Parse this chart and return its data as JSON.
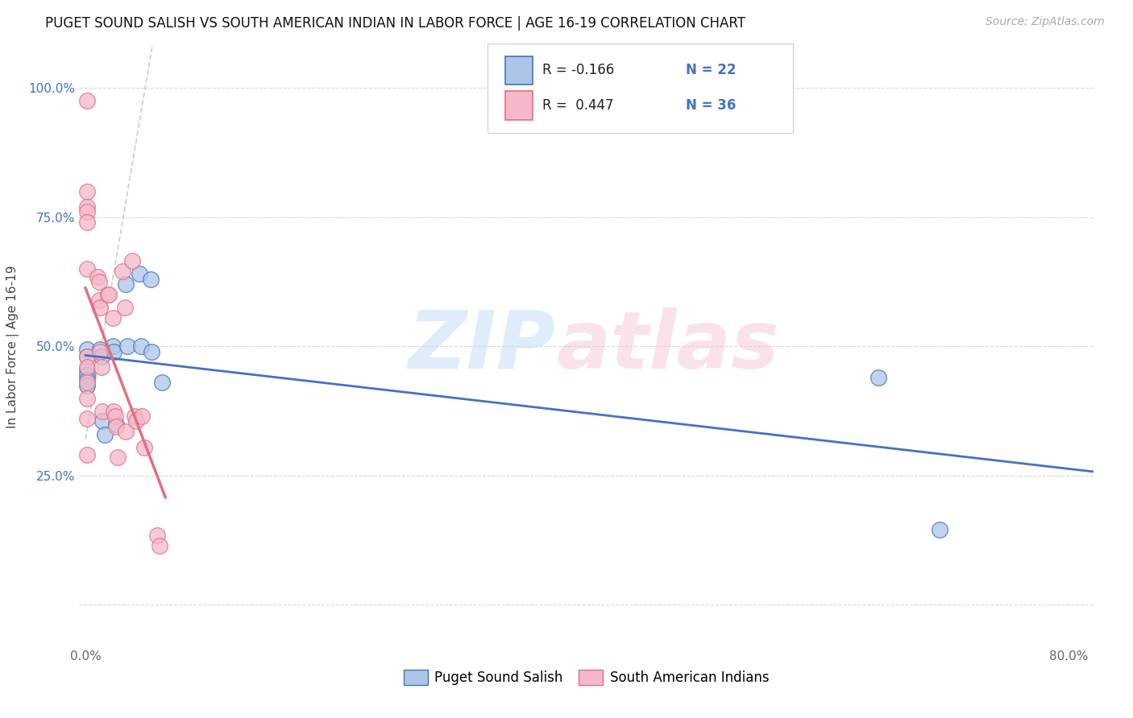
{
  "title": "PUGET SOUND SALISH VS SOUTH AMERICAN INDIAN IN LABOR FORCE | AGE 16-19 CORRELATION CHART",
  "source": "Source: ZipAtlas.com",
  "ylabel": "In Labor Force | Age 16-19",
  "xlim": [
    -0.005,
    0.82
  ],
  "ylim": [
    -0.08,
    1.08
  ],
  "xticks": [
    0.0,
    0.1,
    0.2,
    0.3,
    0.4,
    0.5,
    0.6,
    0.7,
    0.8
  ],
  "xticklabels": [
    "0.0%",
    "",
    "",
    "",
    "",
    "",
    "",
    "",
    "80.0%"
  ],
  "yticks": [
    0.0,
    0.25,
    0.5,
    0.75,
    1.0
  ],
  "yticklabels": [
    "",
    "25.0%",
    "50.0%",
    "75.0%",
    "100.0%"
  ],
  "color_blue": "#adc6e8",
  "color_pink": "#f5b8ca",
  "color_trendline_blue": "#4472c4",
  "color_trendline_pink": "#e07080",
  "color_refline": "#c8c8c8",
  "grid_color": "#d8d8d8",
  "puget_x": [
    0.001,
    0.001,
    0.001,
    0.001,
    0.001,
    0.001,
    0.012,
    0.013,
    0.014,
    0.016,
    0.022,
    0.023,
    0.025,
    0.033,
    0.034,
    0.044,
    0.045,
    0.053,
    0.054,
    0.062,
    0.645,
    0.695
  ],
  "puget_y": [
    0.495,
    0.48,
    0.455,
    0.445,
    0.435,
    0.425,
    0.495,
    0.48,
    0.355,
    0.33,
    0.5,
    0.49,
    0.35,
    0.62,
    0.5,
    0.64,
    0.5,
    0.63,
    0.49,
    0.43,
    0.44,
    0.145
  ],
  "samind_x": [
    0.001,
    0.001,
    0.001,
    0.001,
    0.001,
    0.001,
    0.001,
    0.001,
    0.001,
    0.001,
    0.001,
    0.001,
    0.01,
    0.011,
    0.011,
    0.012,
    0.012,
    0.013,
    0.014,
    0.018,
    0.019,
    0.022,
    0.023,
    0.024,
    0.025,
    0.026,
    0.03,
    0.032,
    0.033,
    0.038,
    0.04,
    0.041,
    0.046,
    0.048,
    0.058,
    0.06
  ],
  "samind_y": [
    0.975,
    0.8,
    0.77,
    0.76,
    0.74,
    0.65,
    0.48,
    0.46,
    0.43,
    0.4,
    0.36,
    0.29,
    0.635,
    0.625,
    0.59,
    0.575,
    0.49,
    0.46,
    0.375,
    0.6,
    0.6,
    0.555,
    0.375,
    0.365,
    0.345,
    0.285,
    0.645,
    0.575,
    0.335,
    0.665,
    0.365,
    0.355,
    0.365,
    0.305,
    0.135,
    0.115
  ],
  "trendline_blue_x0": 0.0,
  "trendline_blue_x1": 0.82,
  "trendline_pink_x0": 0.0,
  "trendline_pink_x1": 0.065,
  "refline_x0": 0.0,
  "refline_x1": 0.08,
  "refline_slope": 14.0,
  "refline_intercept": 0.32
}
